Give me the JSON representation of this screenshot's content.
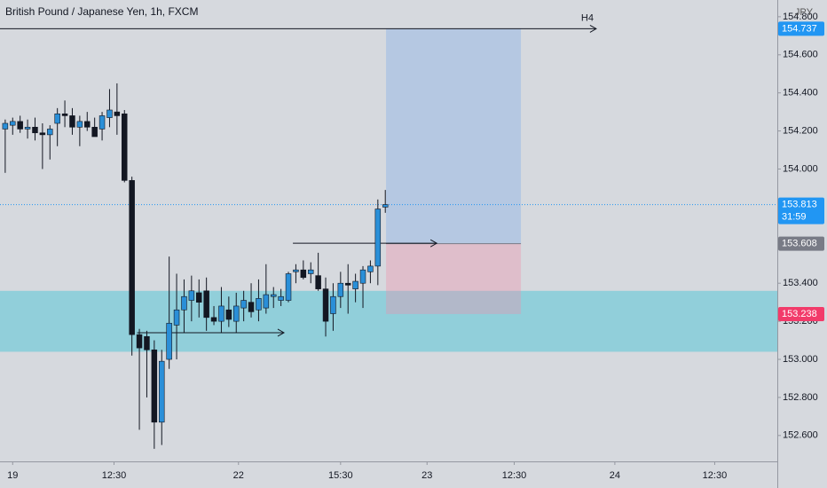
{
  "chart_data": {
    "type": "candlestick",
    "title": "British Pound / Japanese Yen, 1h, FXCM",
    "currency": "JPY",
    "up_color": "#2a8fd8",
    "down_color": "#131722",
    "open": [
      154.21,
      154.23,
      154.25,
      154.21,
      154.22,
      154.19,
      154.18,
      154.24,
      154.29,
      154.28,
      154.22,
      154.25,
      154.22,
      154.21,
      154.27,
      154.3,
      154.29,
      153.94,
      153.13,
      153.12,
      153.05,
      152.67,
      153.0,
      153.18,
      153.26,
      153.31,
      153.35,
      153.36,
      153.22,
      153.2,
      153.26,
      153.2,
      153.27,
      153.3,
      153.26,
      153.27,
      153.33,
      153.31,
      153.31,
      153.46,
      153.47,
      153.45,
      153.44,
      153.37,
      153.24,
      153.33,
      153.4,
      153.37,
      153.4,
      153.46,
      153.49,
      153.8
    ],
    "high": [
      154.26,
      154.27,
      154.28,
      154.26,
      154.27,
      154.24,
      154.23,
      154.32,
      154.36,
      154.32,
      154.28,
      154.3,
      154.27,
      154.3,
      154.42,
      154.45,
      154.31,
      153.96,
      153.16,
      153.15,
      153.1,
      153.05,
      153.54,
      153.45,
      153.42,
      153.44,
      153.42,
      153.43,
      153.28,
      153.38,
      153.33,
      153.35,
      153.36,
      153.4,
      153.42,
      153.5,
      153.38,
      153.37,
      153.46,
      153.5,
      153.52,
      153.51,
      153.56,
      153.43,
      153.4,
      153.46,
      153.5,
      153.45,
      153.49,
      153.52,
      153.84,
      153.89
    ],
    "low": [
      153.98,
      154.18,
      154.19,
      154.16,
      154.15,
      154.0,
      154.05,
      154.12,
      154.22,
      154.18,
      154.12,
      154.2,
      154.18,
      154.15,
      154.22,
      154.18,
      153.93,
      153.02,
      152.63,
      152.8,
      152.53,
      152.55,
      152.95,
      153.0,
      153.14,
      153.2,
      153.22,
      153.15,
      153.18,
      153.14,
      153.17,
      153.14,
      153.2,
      153.22,
      153.2,
      153.24,
      153.27,
      153.28,
      153.3,
      153.4,
      153.42,
      153.4,
      153.36,
      153.12,
      153.15,
      153.27,
      153.24,
      153.3,
      153.27,
      153.4,
      153.39,
      153.77
    ],
    "close": [
      154.24,
      154.25,
      154.21,
      154.22,
      154.19,
      154.18,
      154.21,
      154.29,
      154.28,
      154.22,
      154.25,
      154.22,
      154.17,
      154.28,
      154.31,
      154.28,
      153.94,
      153.13,
      153.06,
      153.05,
      152.67,
      152.99,
      153.19,
      153.26,
      153.33,
      153.36,
      153.3,
      153.22,
      153.2,
      153.28,
      153.21,
      153.28,
      153.31,
      153.25,
      153.32,
      153.34,
      153.34,
      153.33,
      153.45,
      153.47,
      153.43,
      153.47,
      153.37,
      153.2,
      153.33,
      153.4,
      153.39,
      153.41,
      153.47,
      153.49,
      153.79,
      153.813
    ],
    "xlim": [
      -0.7,
      103.6
    ],
    "xticks": [
      {
        "value": 1,
        "label": "19"
      },
      {
        "value": 14.6,
        "label": "12:30"
      },
      {
        "value": 31.3,
        "label": "22"
      },
      {
        "value": 45,
        "label": "15:30"
      },
      {
        "value": 56.6,
        "label": "23"
      },
      {
        "value": 68.3,
        "label": "12:30"
      },
      {
        "value": 81.8,
        "label": "24"
      },
      {
        "value": 95.2,
        "label": "12:30"
      }
    ],
    "ylim": [
      152.464,
      154.888
    ],
    "yticks": [
      {
        "value": 152.6,
        "label": "152.600"
      },
      {
        "value": 152.8,
        "label": "152.800"
      },
      {
        "value": 153.0,
        "label": "153.000"
      },
      {
        "value": 153.2,
        "label": "153.200"
      },
      {
        "value": 153.4,
        "label": "153.400"
      },
      {
        "value": 153.6,
        "label": "153.600"
      },
      {
        "value": 153.8,
        "label": "153.800"
      },
      {
        "value": 154.0,
        "label": "154.000"
      },
      {
        "value": 154.2,
        "label": "154.200"
      },
      {
        "value": 154.4,
        "label": "154.400"
      },
      {
        "value": 154.6,
        "label": "154.600"
      },
      {
        "value": 154.8,
        "label": "154.800"
      }
    ],
    "zone": {
      "top": 153.36,
      "bottom": 153.04
    },
    "h4_line": {
      "label": "H4",
      "price": 154.737,
      "from": -0.7,
      "to": 79.3
    },
    "rays": [
      {
        "price": 153.61,
        "from": 38.6,
        "to": 57.9
      },
      {
        "price": 153.14,
        "from": 17.7,
        "to": 37.4
      }
    ],
    "position": {
      "target": 154.737,
      "entry": 153.608,
      "stop": 153.238,
      "start": 51.1,
      "end": 69.2
    },
    "badges": [
      {
        "value": 154.737,
        "color": "#2196f3"
      },
      {
        "value": 153.813,
        "color": "#2196f3",
        "countdown": "31:59"
      },
      {
        "value": 153.608,
        "color": "#787b86"
      },
      {
        "value": 153.238,
        "color": "#f23b6a"
      }
    ]
  }
}
